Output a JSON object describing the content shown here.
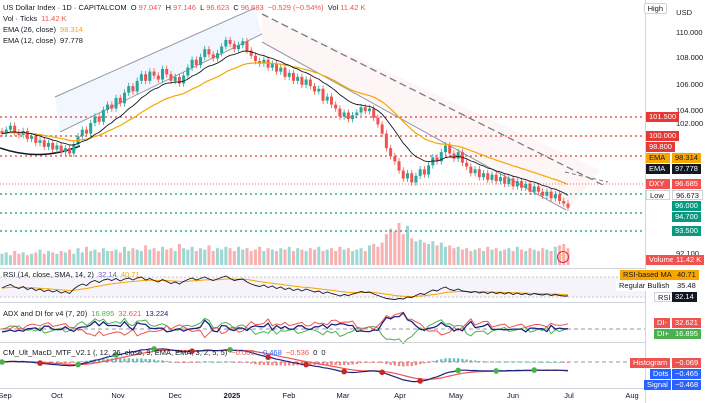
{
  "main_legend": {
    "symbol": "US Dollar Index · 1D · CAPITALCOM",
    "o_label": "O",
    "o_value": "97.047",
    "h_label": "H",
    "h_value": "97.146",
    "l_label": "L",
    "l_value": "96.623",
    "c_label": "C",
    "c_value": "96.683",
    "change": "−0.529 (−0.54%)",
    "vol_label": "Vol",
    "vol_value": "11.42 K"
  },
  "vol_ticks": {
    "label": "Vol · Ticks",
    "value": "11.42 K"
  },
  "ema26": {
    "label": "EMA (26, close)",
    "value": "98.314"
  },
  "ema12": {
    "label": "EMA (12, close)",
    "value": "97.778"
  },
  "rsi_legend": {
    "label": "RSI (14, close, SMA, 14, 2)",
    "v1": "32.14",
    "v2": "40.71"
  },
  "adx_legend": {
    "label": "ADX and DI for v4 (7, 20)",
    "v1": "16.895",
    "v2": "32.621",
    "v3": "13.224"
  },
  "macd_legend": {
    "label": "CM_Ult_MacD_MTF_V2.1 (, 12, 26, close, 9, EMA, EMA, 3, 2, 5, 5)",
    "v1": "−0.069",
    "v2": "−0.468",
    "v3": "−0.536",
    "v4": "0",
    "v5": "0"
  },
  "top_controls": {
    "high_button": "High",
    "currency": "USD"
  },
  "price_axis": [
    "110.000",
    "108.000",
    "106.000",
    "104.000",
    "102.000",
    "92.100"
  ],
  "price_tags": {
    "t1015": "101.500",
    "t1000": "100.000",
    "t988": "98.800",
    "ema_label": "EMA",
    "ema26": "98.314",
    "ema12": "97.778",
    "dxy_label": "DXY",
    "dxy": "96.685",
    "low_label": "Low",
    "low": "96.673",
    "t960": "96.000",
    "t947": "94.700",
    "t935": "93.500",
    "volume_label": "Volume",
    "volume": "11.42 K"
  },
  "rsi_tags": {
    "ma_label": "RSI-based MA",
    "ma": "40.71",
    "rb_label": "Regular Bullish",
    "rb": "35.48",
    "rsi_label": "RSI",
    "rsi": "32.14"
  },
  "adx_tags": {
    "dim_label": "DI-",
    "dim": "32.621",
    "dip_label": "DI+",
    "dip": "16.895"
  },
  "macd_tags": {
    "hist_label": "Histogram",
    "hist": "−0.069",
    "dots_label": "Dots",
    "dots": "−0.465",
    "signal_label": "Signal",
    "signal": "−0.468"
  },
  "x_axis": [
    {
      "label": "Sep",
      "bold": false
    },
    {
      "label": "Oct",
      "bold": false
    },
    {
      "label": "Nov",
      "bold": false
    },
    {
      "label": "Dec",
      "bold": false
    },
    {
      "label": "2025",
      "bold": true
    },
    {
      "label": "Feb",
      "bold": false
    },
    {
      "label": "Mar",
      "bold": false
    },
    {
      "label": "Apr",
      "bold": false
    },
    {
      "label": "May",
      "bold": false
    },
    {
      "label": "Jun",
      "bold": false
    },
    {
      "label": "Jul",
      "bold": false
    },
    {
      "label": "Aug",
      "bold": false
    }
  ],
  "colors": {
    "up": "#26a69a",
    "down": "#ef5350",
    "ema26": "#f7a600",
    "ema12": "#131722",
    "level_red": "#e53935",
    "level_green": "#089981",
    "blue": "#2962ff",
    "channel_up": "#2962ff",
    "channel_down": "#9598a1"
  },
  "price_series": [
    102.3,
    102.6,
    102.9,
    102.4,
    102.2,
    102.5,
    101.9,
    102.1,
    101.6,
    101.8,
    101.3,
    101.6,
    101.1,
    101.4,
    100.9,
    101.2,
    100.8,
    101.5,
    102.1,
    102.6,
    102.3,
    103.1,
    103.6,
    103.2,
    104.1,
    104.5,
    104.2,
    105.0,
    104.6,
    105.4,
    105.9,
    105.5,
    106.3,
    106.8,
    106.3,
    107.0,
    106.7,
    106.4,
    107.2,
    106.8,
    106.3,
    106.6,
    106.1,
    106.7,
    107.3,
    107.9,
    107.5,
    108.1,
    108.7,
    108.3,
    108.0,
    108.4,
    108.9,
    109.4,
    109.1,
    108.7,
    109.0,
    109.3,
    108.6,
    108.2,
    107.8,
    107.6,
    107.9,
    107.3,
    107.6,
    107.0,
    107.3,
    106.6,
    106.9,
    106.3,
    106.6,
    106.0,
    106.4,
    105.9,
    105.5,
    105.7,
    104.8,
    105.1,
    104.5,
    104.2,
    103.6,
    103.9,
    103.4,
    103.7,
    103.9,
    104.3,
    104.0,
    104.2,
    103.5,
    103.0,
    102.3,
    101.2,
    100.6,
    100.2,
    99.5,
    98.9,
    99.3,
    98.6,
    99.1,
    99.6,
    99.2,
    99.9,
    100.5,
    100.2,
    100.9,
    101.4,
    100.8,
    100.4,
    100.9,
    100.1,
    99.8,
    99.3,
    99.6,
    99.0,
    99.3,
    98.8,
    99.2,
    98.7,
    99.0,
    98.5,
    98.9,
    98.3,
    98.7,
    98.2,
    98.5,
    97.9,
    98.3,
    97.9,
    97.6,
    97.9,
    97.4,
    97.7,
    97.2,
    97.0,
    96.7
  ],
  "volume_series": [
    0.8,
    0.9,
    0.7,
    1.0,
    0.8,
    0.9,
    0.7,
    0.8,
    0.9,
    1.1,
    0.8,
    1.0,
    0.9,
    0.8,
    1.0,
    0.9,
    1.1,
    0.8,
    1.2,
    0.9,
    1.3,
    1.0,
    1.1,
    0.9,
    1.2,
    1.0,
    1.0,
    1.1,
    0.9,
    1.3,
    1.0,
    1.2,
    1.1,
    1.0,
    1.4,
    1.1,
    1.2,
    1.0,
    1.3,
    1.1,
    1.2,
    1.0,
    1.5,
    1.2,
    1.1,
    1.3,
    1.0,
    1.2,
    1.1,
    1.4,
    1.0,
    1.2,
    1.1,
    1.3,
    1.2,
    1.0,
    1.3,
    1.1,
    1.2,
    1.0,
    1.1,
    1.3,
    1.0,
    1.2,
    1.1,
    1.0,
    1.2,
    1.1,
    1.3,
    1.0,
    1.2,
    1.1,
    1.0,
    1.2,
    1.1,
    1.3,
    1.0,
    1.1,
    1.2,
    1.0,
    1.3,
    1.1,
    1.2,
    1.0,
    1.1,
    1.2,
    1.0,
    1.4,
    1.5,
    1.3,
    1.6,
    2.2,
    2.6,
    2.4,
    3.0,
    2.2,
    2.8,
    1.9,
    1.7,
    1.8,
    1.6,
    1.5,
    1.7,
    1.4,
    1.6,
    1.3,
    1.4,
    1.2,
    1.3,
    1.1,
    1.2,
    1.0,
    1.1,
    1.2,
    1.0,
    1.3,
    1.1,
    1.2,
    1.0,
    1.1,
    1.2,
    1.0,
    1.3,
    1.1,
    1.0,
    1.2,
    1.1,
    1.0,
    1.2,
    1.1,
    1.0,
    1.3,
    1.4,
    1.5,
    1.2
  ],
  "rsi_series": [
    48,
    52,
    55,
    50,
    47,
    51,
    45,
    48,
    43,
    46,
    41,
    44,
    40,
    43,
    38,
    41,
    37,
    46,
    52,
    56,
    53,
    60,
    63,
    59,
    64,
    66,
    63,
    67,
    62,
    66,
    68,
    64,
    68,
    70,
    64,
    67,
    63,
    60,
    65,
    61,
    57,
    60,
    56,
    61,
    65,
    68,
    64,
    67,
    70,
    66,
    63,
    66,
    69,
    72,
    67,
    63,
    65,
    66,
    60,
    56,
    53,
    51,
    54,
    49,
    52,
    47,
    50,
    45,
    48,
    43,
    46,
    42,
    46,
    43,
    40,
    42,
    37,
    40,
    37,
    35,
    32,
    35,
    33,
    36,
    38,
    41,
    39,
    40,
    36,
    33,
    30,
    27,
    26,
    25,
    27,
    26,
    30,
    29,
    33,
    37,
    35,
    40,
    44,
    42,
    47,
    50,
    45,
    43,
    46,
    42,
    41,
    39,
    41,
    38,
    40,
    37,
    40,
    37,
    39,
    36,
    39,
    35,
    38,
    35,
    37,
    34,
    37,
    35,
    34,
    36,
    33,
    35,
    33,
    32,
    32
  ]
}
